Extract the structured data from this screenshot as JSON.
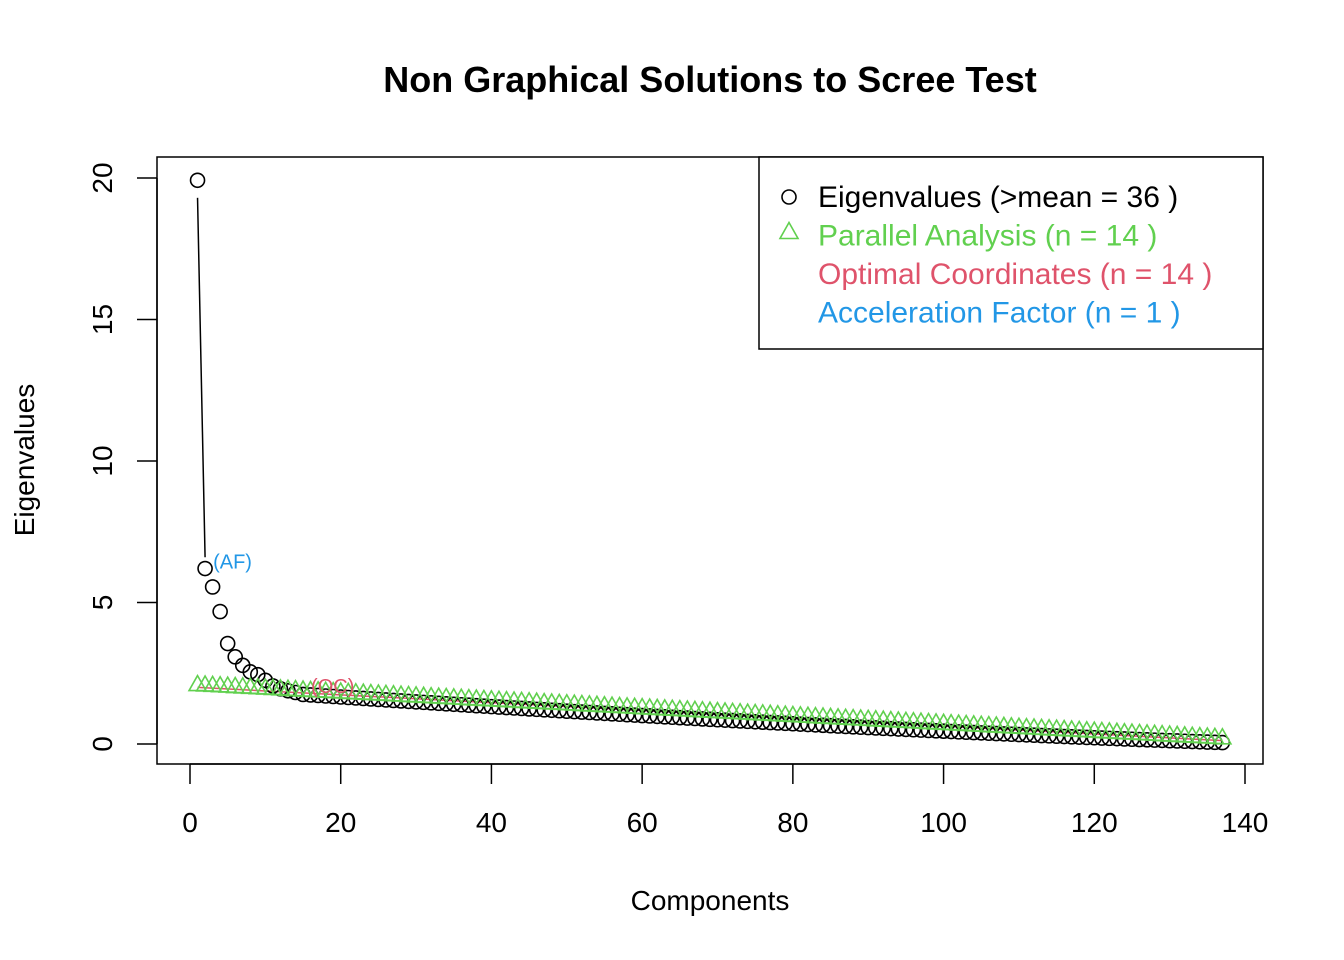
{
  "chart_data": {
    "type": "scatter",
    "title": "Non Graphical Solutions to Scree Test",
    "xlabel": "Components",
    "ylabel": "Eigenvalues",
    "xlim": [
      0,
      140
    ],
    "ylim": [
      0,
      20
    ],
    "x_ticks": [
      0,
      20,
      40,
      60,
      80,
      100,
      120,
      140
    ],
    "y_ticks": [
      0,
      5,
      10,
      15,
      20
    ],
    "grid": false,
    "legend_position": "top-right",
    "legend": [
      {
        "label": "Eigenvalues (>mean  =  36 )",
        "color": "#000000",
        "marker": "circle"
      },
      {
        "label": "Parallel Analysis (n =  14 )",
        "color": "#61D04F",
        "marker": "triangle"
      },
      {
        "label": "Optimal Coordinates (n =  14 )",
        "color": "#DF536B",
        "marker": "none"
      },
      {
        "label": "Acceleration Factor (n =  1 )",
        "color": "#2297E6",
        "marker": "none"
      }
    ],
    "annotations": [
      {
        "text": "(AF)",
        "x": 2,
        "y": 6.2,
        "color": "#2297E6"
      },
      {
        "text": "(OC)",
        "x": 15,
        "y": 1.8,
        "color": "#DF536B"
      }
    ],
    "series": [
      {
        "name": "Eigenvalues",
        "marker": "circle",
        "color": "#000000",
        "n_components": 137,
        "first_values": [
          19.92,
          6.2,
          5.55,
          4.68,
          3.55,
          3.08,
          2.78,
          2.55,
          2.45,
          2.25,
          2.05,
          1.95,
          1.88,
          1.82
        ],
        "tail": {
          "from_x": 15,
          "to_x": 137,
          "from_y": 1.75,
          "to_y": 0.05,
          "curvature": 0.55
        }
      },
      {
        "name": "Parallel Analysis",
        "marker": "triangle",
        "color": "#61D04F",
        "n_components": 137,
        "start": 2.1,
        "end": 0.22
      }
    ],
    "optimal_coordinates_line": {
      "from": [
        1,
        2.0
      ],
      "to": [
        137,
        0.12
      ],
      "color": "#DF536B"
    },
    "acceleration_factor_line": {
      "from": [
        1,
        19.3
      ],
      "to": [
        2,
        6.6
      ],
      "color": "#000000"
    }
  }
}
